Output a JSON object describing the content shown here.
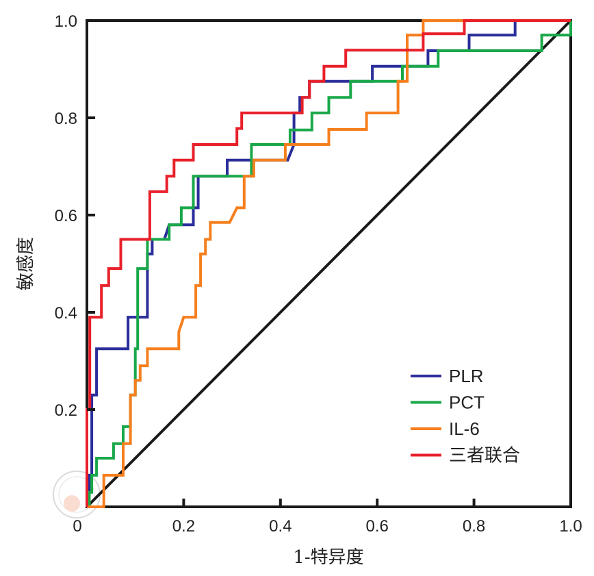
{
  "chart_data": {
    "type": "line",
    "title": "",
    "xlabel": "1-特异度",
    "ylabel": "敏感度",
    "xlim": [
      0,
      1
    ],
    "ylim": [
      0,
      1
    ],
    "xticks": [
      "0",
      "0.2",
      "0.4",
      "0.6",
      "0.8",
      "1.0"
    ],
    "yticks": [
      "0.2",
      "0.4",
      "0.6",
      "0.8",
      "1.0"
    ],
    "grid": false,
    "legend_position": "bottom-right",
    "reference_line": {
      "name": "diagonal",
      "color": "#1a1a1a",
      "points": [
        [
          0,
          0
        ],
        [
          1,
          1
        ]
      ]
    },
    "series": [
      {
        "name": "PLR",
        "color": "#2b2e9a",
        "points": [
          [
            0,
            0
          ],
          [
            0.005,
            0
          ],
          [
            0.005,
            0.065
          ],
          [
            0.01,
            0.065
          ],
          [
            0.01,
            0.23
          ],
          [
            0.02,
            0.23
          ],
          [
            0.02,
            0.325
          ],
          [
            0.085,
            0.325
          ],
          [
            0.085,
            0.39
          ],
          [
            0.125,
            0.39
          ],
          [
            0.125,
            0.52
          ],
          [
            0.135,
            0.52
          ],
          [
            0.135,
            0.55
          ],
          [
            0.16,
            0.55
          ],
          [
            0.17,
            0.58
          ],
          [
            0.22,
            0.58
          ],
          [
            0.22,
            0.615
          ],
          [
            0.23,
            0.615
          ],
          [
            0.23,
            0.68
          ],
          [
            0.29,
            0.68
          ],
          [
            0.29,
            0.713
          ],
          [
            0.415,
            0.713
          ],
          [
            0.428,
            0.745
          ],
          [
            0.428,
            0.81
          ],
          [
            0.44,
            0.81
          ],
          [
            0.44,
            0.842
          ],
          [
            0.46,
            0.842
          ],
          [
            0.46,
            0.875
          ],
          [
            0.59,
            0.875
          ],
          [
            0.59,
            0.906
          ],
          [
            0.705,
            0.906
          ],
          [
            0.705,
            0.938
          ],
          [
            0.79,
            0.938
          ],
          [
            0.79,
            0.97
          ],
          [
            0.885,
            0.97
          ],
          [
            0.885,
            1.0
          ],
          [
            1,
            1
          ]
        ]
      },
      {
        "name": "PCT",
        "color": "#1aa84a",
        "points": [
          [
            0,
            0
          ],
          [
            0.005,
            0
          ],
          [
            0.005,
            0.03
          ],
          [
            0.01,
            0.03
          ],
          [
            0.01,
            0.065
          ],
          [
            0.02,
            0.065
          ],
          [
            0.02,
            0.1
          ],
          [
            0.055,
            0.1
          ],
          [
            0.055,
            0.13
          ],
          [
            0.075,
            0.13
          ],
          [
            0.075,
            0.165
          ],
          [
            0.09,
            0.165
          ],
          [
            0.09,
            0.23
          ],
          [
            0.1,
            0.23
          ],
          [
            0.1,
            0.325
          ],
          [
            0.105,
            0.325
          ],
          [
            0.105,
            0.49
          ],
          [
            0.125,
            0.49
          ],
          [
            0.125,
            0.55
          ],
          [
            0.17,
            0.55
          ],
          [
            0.17,
            0.58
          ],
          [
            0.195,
            0.58
          ],
          [
            0.195,
            0.615
          ],
          [
            0.22,
            0.615
          ],
          [
            0.22,
            0.68
          ],
          [
            0.34,
            0.68
          ],
          [
            0.34,
            0.745
          ],
          [
            0.42,
            0.745
          ],
          [
            0.42,
            0.775
          ],
          [
            0.465,
            0.775
          ],
          [
            0.465,
            0.81
          ],
          [
            0.5,
            0.81
          ],
          [
            0.5,
            0.842
          ],
          [
            0.545,
            0.842
          ],
          [
            0.545,
            0.875
          ],
          [
            0.652,
            0.875
          ],
          [
            0.652,
            0.906
          ],
          [
            0.726,
            0.906
          ],
          [
            0.726,
            0.938
          ],
          [
            0.94,
            0.938
          ],
          [
            0.94,
            0.97
          ],
          [
            1,
            0.97
          ],
          [
            1,
            1
          ]
        ]
      },
      {
        "name": "IL-6",
        "color": "#f57f1e",
        "points": [
          [
            0,
            0
          ],
          [
            0.035,
            0
          ],
          [
            0.035,
            0.065
          ],
          [
            0.075,
            0.065
          ],
          [
            0.075,
            0.13
          ],
          [
            0.09,
            0.13
          ],
          [
            0.09,
            0.23
          ],
          [
            0.1,
            0.23
          ],
          [
            0.1,
            0.26
          ],
          [
            0.11,
            0.26
          ],
          [
            0.11,
            0.29
          ],
          [
            0.125,
            0.29
          ],
          [
            0.125,
            0.325
          ],
          [
            0.19,
            0.325
          ],
          [
            0.19,
            0.36
          ],
          [
            0.2,
            0.39
          ],
          [
            0.225,
            0.39
          ],
          [
            0.225,
            0.455
          ],
          [
            0.235,
            0.455
          ],
          [
            0.235,
            0.52
          ],
          [
            0.245,
            0.52
          ],
          [
            0.245,
            0.55
          ],
          [
            0.255,
            0.55
          ],
          [
            0.255,
            0.585
          ],
          [
            0.295,
            0.585
          ],
          [
            0.31,
            0.615
          ],
          [
            0.325,
            0.615
          ],
          [
            0.325,
            0.68
          ],
          [
            0.345,
            0.68
          ],
          [
            0.345,
            0.713
          ],
          [
            0.41,
            0.713
          ],
          [
            0.41,
            0.745
          ],
          [
            0.5,
            0.745
          ],
          [
            0.5,
            0.776
          ],
          [
            0.578,
            0.776
          ],
          [
            0.578,
            0.81
          ],
          [
            0.643,
            0.81
          ],
          [
            0.643,
            0.875
          ],
          [
            0.662,
            0.875
          ],
          [
            0.662,
            0.97
          ],
          [
            0.695,
            0.97
          ],
          [
            0.695,
            1.0
          ],
          [
            1,
            1
          ]
        ]
      },
      {
        "name": "三者联合",
        "color": "#e8202a",
        "points": [
          [
            0,
            0
          ],
          [
            0,
            0.2
          ],
          [
            0.006,
            0.2
          ],
          [
            0.006,
            0.39
          ],
          [
            0.03,
            0.39
          ],
          [
            0.03,
            0.455
          ],
          [
            0.045,
            0.455
          ],
          [
            0.045,
            0.49
          ],
          [
            0.07,
            0.49
          ],
          [
            0.07,
            0.55
          ],
          [
            0.13,
            0.55
          ],
          [
            0.13,
            0.648
          ],
          [
            0.165,
            0.648
          ],
          [
            0.165,
            0.68
          ],
          [
            0.18,
            0.68
          ],
          [
            0.18,
            0.713
          ],
          [
            0.22,
            0.713
          ],
          [
            0.22,
            0.745
          ],
          [
            0.31,
            0.745
          ],
          [
            0.31,
            0.778
          ],
          [
            0.32,
            0.778
          ],
          [
            0.32,
            0.81
          ],
          [
            0.445,
            0.81
          ],
          [
            0.445,
            0.842
          ],
          [
            0.46,
            0.842
          ],
          [
            0.46,
            0.875
          ],
          [
            0.49,
            0.875
          ],
          [
            0.49,
            0.906
          ],
          [
            0.535,
            0.906
          ],
          [
            0.535,
            0.939
          ],
          [
            0.695,
            0.939
          ],
          [
            0.695,
            0.973
          ],
          [
            0.78,
            0.973
          ],
          [
            0.78,
            1.0
          ],
          [
            1,
            1
          ]
        ]
      }
    ]
  }
}
